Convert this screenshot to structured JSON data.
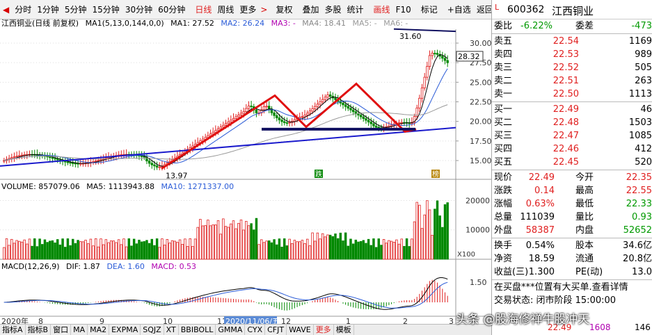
{
  "toolbar": {
    "items": [
      "分时",
      "1分钟",
      "5分钟",
      "15分钟",
      "30分钟",
      "60分钟",
      "日线",
      "周线",
      "更多",
      "复权",
      "叠加",
      "多股",
      "统计",
      "画线",
      "F10",
      "标记",
      "+自选",
      "返回"
    ],
    "active": [
      "日线",
      "画线"
    ],
    "more_arrow": ">"
  },
  "legend": {
    "title": "江西铜业(日线 前复权)",
    "ma_label": "MA1(5,13,0,144,0,0)",
    "ma1": "MA1: 27.52",
    "ma2": "MA2: 26.24",
    "ma3": "MA3: -",
    "ma4": "MA4: 18.41",
    "ma5": "MA5: -",
    "ma6": "MA6: -"
  },
  "volume_legend": {
    "volume": "VOLUME: 857079.06",
    "ma5": "MA5: 1113943.88",
    "ma10": "MA10: 1271337.00"
  },
  "macd_legend": {
    "label": "MACD(12,26,9)",
    "dif": "DIF: 1.87",
    "dea": "DEA: 1.60",
    "macd": "MACD: 0.53"
  },
  "price_axis": [
    "30.00",
    "27.50",
    "25.00",
    "22.50",
    "20.00",
    "17.50",
    "15.00"
  ],
  "current_price_tag": "28.32",
  "high_label": "31.60",
  "low_label": "13.97",
  "volume_axis": [
    "20000",
    "10000"
  ],
  "volume_unit": "X100",
  "macd_axis": "1.50",
  "markers": {
    "die": "跌",
    "bang": "榜"
  },
  "date_axis": {
    "labels": [
      "2020年",
      "8",
      "9",
      "10",
      "11",
      "12",
      "1",
      "2",
      "3"
    ],
    "highlight": "2020/11/06/五"
  },
  "bottom_tabs": [
    "指标A",
    "指标B",
    "窗口",
    "MA",
    "MA2",
    "EXPMA",
    "SQJZ",
    "XT",
    "BBIBOLL",
    "GMMA",
    "CYX",
    "CFJT",
    "WAVE",
    "更多",
    "模板"
  ],
  "quote": {
    "market": "L",
    "code": "600362",
    "name": "江西铜业",
    "weibi_label": "委比",
    "weibi": "-6.22%",
    "weicha_label": "委差",
    "weicha": "-473",
    "asks": [
      {
        "label": "卖五",
        "price": "22.54",
        "vol": "1169"
      },
      {
        "label": "卖四",
        "price": "22.53",
        "vol": "989"
      },
      {
        "label": "卖三",
        "price": "22.52",
        "vol": "505"
      },
      {
        "label": "卖二",
        "price": "22.51",
        "vol": "263"
      },
      {
        "label": "卖一",
        "price": "22.50",
        "vol": "1113"
      }
    ],
    "bids": [
      {
        "label": "买一",
        "price": "22.49",
        "vol": "46"
      },
      {
        "label": "买二",
        "price": "22.48",
        "vol": "1503"
      },
      {
        "label": "买三",
        "price": "22.47",
        "vol": "1085"
      },
      {
        "label": "买四",
        "price": "22.46",
        "vol": "412"
      },
      {
        "label": "买五",
        "price": "22.45",
        "vol": "520"
      }
    ],
    "stats": [
      {
        "l": "现价",
        "v": "22.49",
        "c1": "red",
        "l2": "今开",
        "v2": "22.35",
        "c2": "red"
      },
      {
        "l": "涨跌",
        "v": "0.14",
        "c1": "red",
        "l2": "最高",
        "v2": "22.55",
        "c2": "red"
      },
      {
        "l": "涨幅",
        "v": "0.63%",
        "c1": "red",
        "l2": "最低",
        "v2": "22.33",
        "c2": "green"
      },
      {
        "l": "总量",
        "v": "111039",
        "c1": "blk",
        "l2": "量比",
        "v2": "0.93",
        "c2": "green"
      },
      {
        "l": "外盘",
        "v": "58387",
        "c1": "red",
        "l2": "内盘",
        "v2": "52652",
        "c2": "green"
      }
    ],
    "stats2": [
      {
        "l": "换手",
        "v": "0.54%",
        "l2": "股本",
        "v2": "34.6亿"
      },
      {
        "l": "净资",
        "v": "18.59",
        "l2": "流通",
        "v2": "20.8亿"
      },
      {
        "l": "收益(三)",
        "v": "1.300",
        "l2": "PE(动)",
        "v2": "13.0"
      }
    ],
    "notice": "在买盘***位置有大买单.查看详情",
    "status": "交易状态: 闭市阶段 15:00:00",
    "bottom_values": [
      "22.49",
      "1608",
      "146"
    ]
  },
  "watermark": "头条 @股海修禅牛股冲天"
}
